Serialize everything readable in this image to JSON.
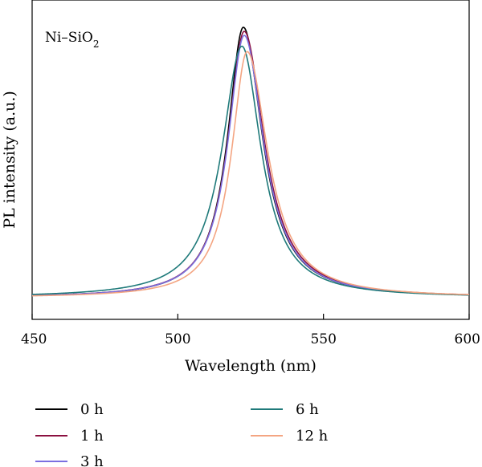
{
  "chart_data": {
    "type": "line",
    "xlabel": "Wavelength (nm)",
    "ylabel": "PL intensity (a.u.)",
    "xlim": [
      450,
      600
    ],
    "ylim": [
      0,
      1.08
    ],
    "xticks": [
      "450",
      "500",
      "550",
      "600"
    ],
    "yticks_shown": false,
    "grid": false,
    "legend_position": "bottom",
    "annotation": {
      "main": "Ni–SiO",
      "sub": "2"
    },
    "series": [
      {
        "name": "0 h",
        "color": "#000000",
        "peak_x": 522.5,
        "peak_y": 1.0,
        "sigma_left": 6.6,
        "sigma_right": 8.0,
        "baseline": 0.0
      },
      {
        "name": "1 h",
        "color": "#8b1040",
        "peak_x": 522.8,
        "peak_y": 0.985,
        "sigma_left": 6.8,
        "sigma_right": 8.3,
        "baseline": 0.0
      },
      {
        "name": "3 h",
        "color": "#7b6fe0",
        "peak_x": 522.8,
        "peak_y": 0.97,
        "sigma_left": 6.8,
        "sigma_right": 8.1,
        "baseline": 0.0
      },
      {
        "name": "6 h",
        "color": "#1f7a7a",
        "peak_x": 522.0,
        "peak_y": 0.93,
        "sigma_left": 8.3,
        "sigma_right": 8.0,
        "baseline": 0.0
      },
      {
        "name": "12 h",
        "color": "#f4a582",
        "peak_x": 523.8,
        "peak_y": 0.91,
        "sigma_left": 6.5,
        "sigma_right": 8.6,
        "baseline": 0.0
      }
    ]
  }
}
